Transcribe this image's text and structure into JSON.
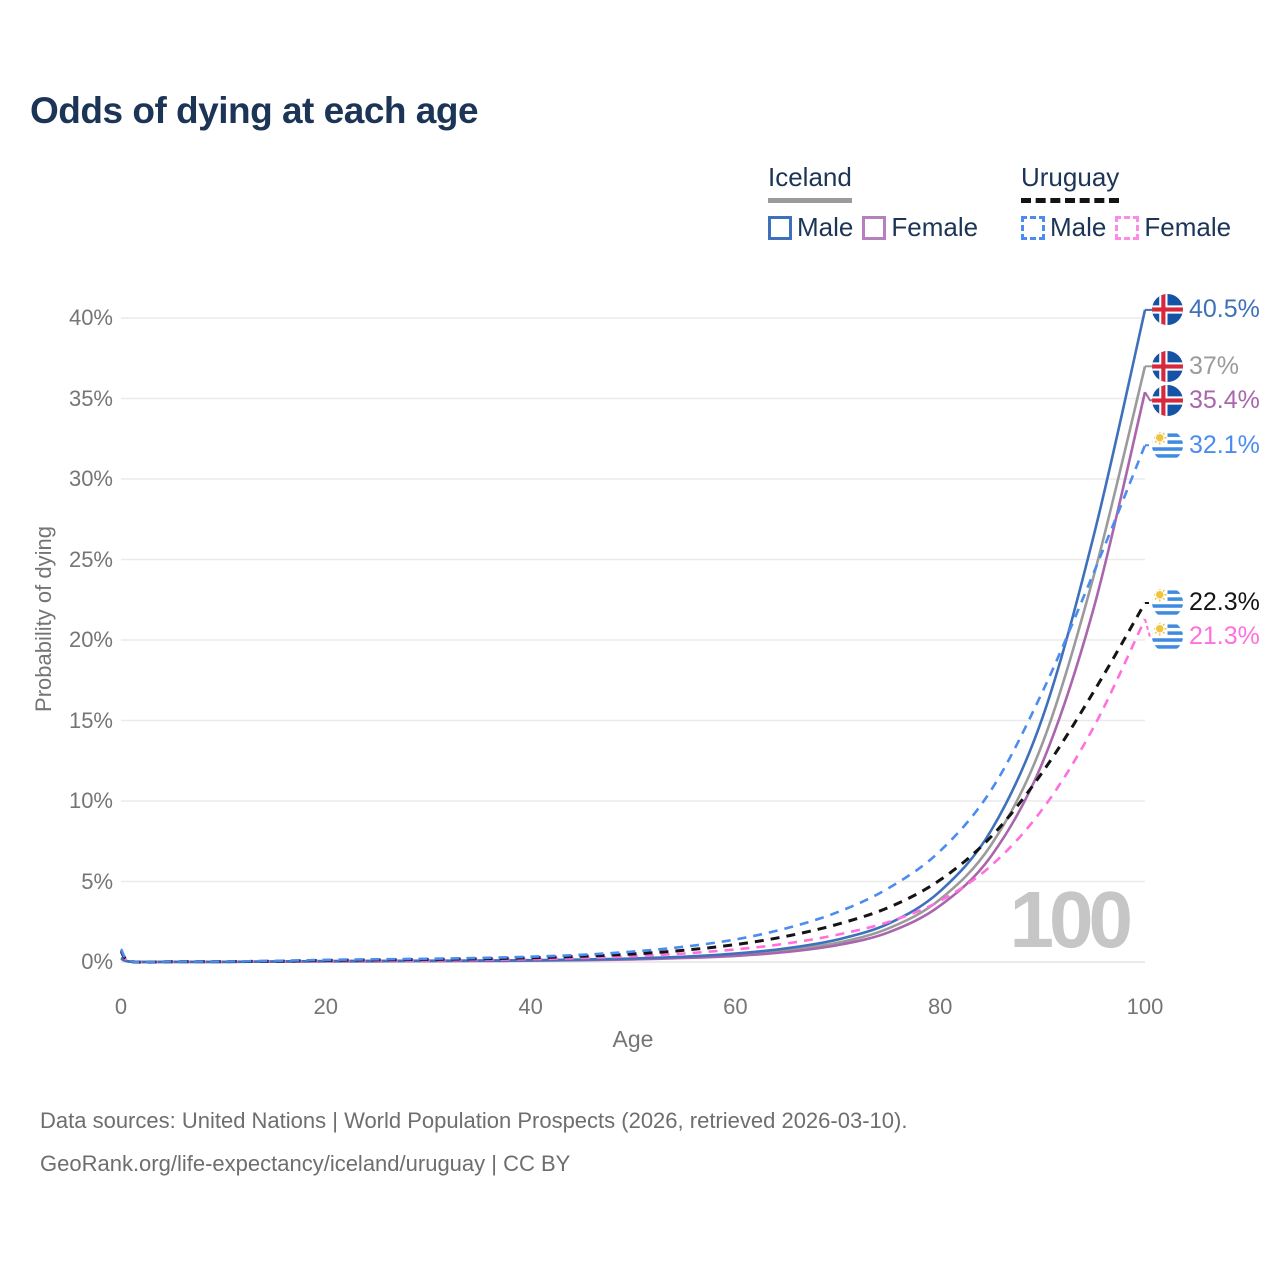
{
  "title": "Odds of dying at each age",
  "legend": {
    "groups": [
      {
        "id": "iceland",
        "label": "Iceland",
        "line_color": "#9b9b9b",
        "line_style": "solid",
        "items": [
          {
            "label": "Male",
            "color": "#3f70ba",
            "style": "solid"
          },
          {
            "label": "Female",
            "color": "#b87fc0",
            "style": "solid"
          }
        ]
      },
      {
        "id": "uruguay",
        "label": "Uruguay",
        "line_color": "#141414",
        "line_style": "dashed",
        "items": [
          {
            "label": "Male",
            "color": "#4a8cf0",
            "style": "dashed"
          },
          {
            "label": "Female",
            "color": "#ff8ae6",
            "style": "dashed"
          }
        ]
      }
    ]
  },
  "watermark": "100",
  "source": {
    "line1": "Data sources: United Nations | World Population Prospects (2026, retrieved 2026-03-10).",
    "line2": "GeoRank.org/life-expectancy/iceland/uruguay | CC BY"
  },
  "chart_data": {
    "type": "line",
    "title": "Odds of dying at each age",
    "xlabel": "Age",
    "ylabel": "Probability of dying",
    "xlim": [
      0,
      100
    ],
    "ylim_pct": [
      0,
      42
    ],
    "x_ticks": [
      0,
      20,
      40,
      60,
      80,
      100
    ],
    "y_ticks": [
      {
        "value": 0,
        "label": "0%"
      },
      {
        "value": 5,
        "label": "5%"
      },
      {
        "value": 10,
        "label": "10%"
      },
      {
        "value": 15,
        "label": "15%"
      },
      {
        "value": 20,
        "label": "20%"
      },
      {
        "value": 25,
        "label": "25%"
      },
      {
        "value": 30,
        "label": "30%"
      },
      {
        "value": 35,
        "label": "35%"
      },
      {
        "value": 40,
        "label": "40%"
      }
    ],
    "grid": "horizontal",
    "legend_position": "top-right",
    "ages": [
      0,
      1,
      5,
      10,
      15,
      20,
      25,
      30,
      35,
      40,
      45,
      50,
      55,
      60,
      65,
      70,
      75,
      80,
      85,
      90,
      95,
      100
    ],
    "series": [
      {
        "id": "iceland-male",
        "name": "Iceland Male",
        "country": "Iceland",
        "sex": "Male",
        "color": "#3f70ba",
        "dashed": false,
        "flag": "iceland",
        "end_label": "40.5%",
        "values_pct": [
          0.25,
          0.02,
          0.01,
          0.01,
          0.03,
          0.06,
          0.07,
          0.08,
          0.09,
          0.11,
          0.15,
          0.22,
          0.33,
          0.52,
          0.85,
          1.4,
          2.4,
          4.4,
          8.2,
          15.2,
          26.5,
          40.5
        ]
      },
      {
        "id": "iceland-both",
        "name": "Iceland",
        "country": "Iceland",
        "sex": "Both",
        "color": "#9b9b9b",
        "dashed": false,
        "flag": "iceland",
        "end_label": "37%",
        "values_pct": [
          0.22,
          0.018,
          0.01,
          0.01,
          0.025,
          0.045,
          0.055,
          0.065,
          0.08,
          0.1,
          0.13,
          0.19,
          0.29,
          0.45,
          0.73,
          1.2,
          2.1,
          3.9,
          7.3,
          13.6,
          24.0,
          37.0
        ]
      },
      {
        "id": "iceland-female",
        "name": "Iceland Female",
        "country": "Iceland",
        "sex": "Female",
        "color": "#aa66ac",
        "dashed": false,
        "flag": "iceland",
        "end_label": "35.4%",
        "values_pct": [
          0.2,
          0.015,
          0.008,
          0.008,
          0.02,
          0.03,
          0.04,
          0.05,
          0.06,
          0.08,
          0.11,
          0.16,
          0.25,
          0.38,
          0.62,
          1.05,
          1.85,
          3.5,
          6.6,
          12.4,
          22.0,
          35.4
        ]
      },
      {
        "id": "uruguay-male",
        "name": "Uruguay Male",
        "country": "Uruguay",
        "sex": "Male",
        "color": "#4a8cf0",
        "dashed": true,
        "flag": "uruguay",
        "end_label": "32.1%",
        "values_pct": [
          0.8,
          0.05,
          0.03,
          0.03,
          0.07,
          0.13,
          0.17,
          0.2,
          0.25,
          0.33,
          0.45,
          0.65,
          0.95,
          1.4,
          2.1,
          3.1,
          4.6,
          6.9,
          10.7,
          16.8,
          24.2,
          32.1
        ]
      },
      {
        "id": "uruguay-both",
        "name": "Uruguay",
        "country": "Uruguay",
        "sex": "Both",
        "color": "#141414",
        "dashed": true,
        "flag": "uruguay",
        "end_label": "22.3%",
        "values_pct": [
          0.7,
          0.04,
          0.025,
          0.025,
          0.05,
          0.1,
          0.13,
          0.16,
          0.2,
          0.26,
          0.36,
          0.5,
          0.73,
          1.08,
          1.6,
          2.35,
          3.4,
          5.1,
          7.8,
          11.8,
          16.8,
          22.3
        ]
      },
      {
        "id": "uruguay-female",
        "name": "Uruguay Female",
        "country": "Uruguay",
        "sex": "Female",
        "color": "#ff70dd",
        "dashed": true,
        "flag": "uruguay",
        "end_label": "21.3%",
        "values_pct": [
          0.6,
          0.035,
          0.02,
          0.02,
          0.04,
          0.06,
          0.08,
          0.1,
          0.13,
          0.18,
          0.25,
          0.36,
          0.53,
          0.78,
          1.15,
          1.7,
          2.5,
          3.8,
          6.0,
          9.5,
          14.6,
          21.3
        ]
      }
    ]
  }
}
